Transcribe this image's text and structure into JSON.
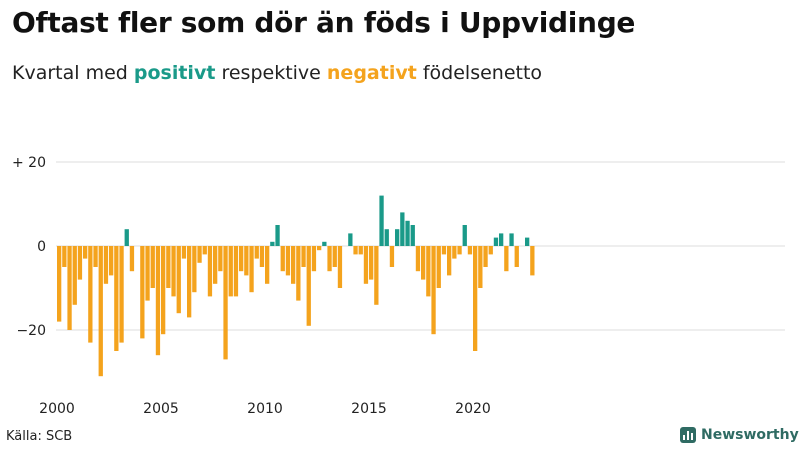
{
  "header": {
    "title": "Oftast fler som dör än föds i Uppvidinge",
    "subtitle_prefix": "Kvartal med ",
    "subtitle_positive": "positivt",
    "subtitle_middle": " respektive ",
    "subtitle_negative": "negativt",
    "subtitle_suffix": " födelsenetto"
  },
  "footer": {
    "source": "Källa: SCB",
    "brand": "Newsworthy"
  },
  "colors": {
    "positive": "#1a9a89",
    "negative": "#f4a31d",
    "gridline": "#dddddd"
  },
  "chart_data": {
    "type": "bar",
    "title": "Oftast fler som dör än föds i Uppvidinge",
    "subtitle": "Kvartal med positivt respektive negativt födelsenetto",
    "xlabel": "",
    "ylabel": "",
    "start_year": 2000,
    "quarters_per_year": 4,
    "ylim": [
      -33,
      20
    ],
    "yticks": [
      {
        "value": 20,
        "label": "+ 20"
      },
      {
        "value": 0,
        "label": "0"
      },
      {
        "value": -20,
        "label": "−20"
      }
    ],
    "xticks": [
      {
        "year": 2000,
        "label": "2000"
      },
      {
        "year": 2005,
        "label": "2005"
      },
      {
        "year": 2010,
        "label": "2010"
      },
      {
        "year": 2015,
        "label": "2015"
      },
      {
        "year": 2020,
        "label": "2020"
      }
    ],
    "series": [
      {
        "name": "Födelsenetto per kvartal",
        "values": [
          -18,
          -5,
          -20,
          -14,
          -8,
          -3,
          -23,
          -5,
          -31,
          -9,
          -7,
          -25,
          -23,
          4,
          -6,
          0,
          -22,
          -13,
          -10,
          -26,
          -21,
          -10,
          -12,
          -16,
          -3,
          -17,
          -11,
          -4,
          -2,
          -12,
          -9,
          -6,
          -27,
          -12,
          -12,
          -6,
          -7,
          -11,
          -3,
          -5,
          -9,
          1,
          5,
          -6,
          -7,
          -9,
          -13,
          -5,
          -19,
          -6,
          -1,
          1,
          -6,
          -5,
          -10,
          0,
          3,
          -2,
          -2,
          -9,
          -8,
          -14,
          12,
          4,
          -5,
          4,
          8,
          6,
          5,
          -6,
          -8,
          -12,
          -21,
          -10,
          -2,
          -7,
          -3,
          -2,
          5,
          -2,
          -25,
          -10,
          -5,
          -2,
          2,
          3,
          -6,
          3,
          -5,
          0,
          2,
          -7
        ]
      }
    ]
  }
}
